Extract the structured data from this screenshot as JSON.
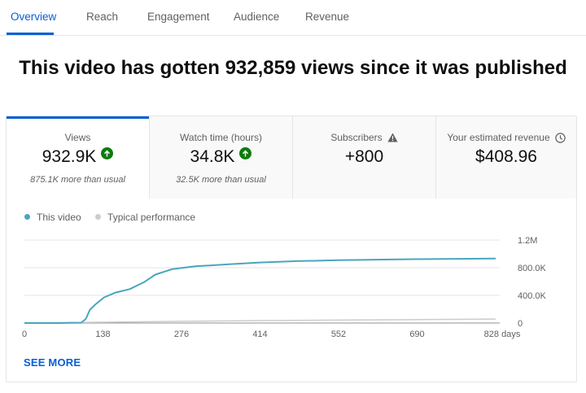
{
  "tabs": [
    {
      "label": "Overview",
      "active": true
    },
    {
      "label": "Reach"
    },
    {
      "label": "Engagement"
    },
    {
      "label": "Audience"
    },
    {
      "label": "Revenue"
    }
  ],
  "headline": "This video has gotten 932,859 views since it was published",
  "metrics": [
    {
      "label": "Views",
      "value": "932.9K",
      "sub": "875.1K more than usual",
      "icon": "arrow-up-icon"
    },
    {
      "label": "Watch time (hours)",
      "value": "34.8K",
      "sub": "32.5K more than usual",
      "icon": "arrow-up-icon"
    },
    {
      "label": "Subscribers",
      "value": "+800",
      "icon": "warning-icon"
    },
    {
      "label": "Your estimated revenue",
      "value": "$408.96",
      "icon": "clock-icon"
    }
  ],
  "colors": {
    "accent": "#065fd4",
    "positive": "#0f7b0f",
    "this_video": "#4aa5be",
    "typical": "#cccccc"
  },
  "legend": [
    {
      "label": "This video",
      "color": "#4aa5be"
    },
    {
      "label": "Typical performance",
      "color": "#cccccc"
    }
  ],
  "see_more": "SEE MORE",
  "chart_data": {
    "type": "line",
    "x_tick_labels": [
      "0",
      "138",
      "276",
      "414",
      "552",
      "690",
      "828 days"
    ],
    "y_tick_labels": [
      "0",
      "400.0K",
      "800.0K",
      "1.2M"
    ],
    "ylim": [
      0,
      1200000
    ],
    "xlim": [
      0,
      828
    ],
    "grid": true,
    "legend_position": "top-left",
    "series": [
      {
        "name": "This video",
        "color": "#4aa5be",
        "points": [
          [
            0,
            0
          ],
          [
            60,
            0
          ],
          [
            100,
            5000
          ],
          [
            108,
            60000
          ],
          [
            115,
            190000
          ],
          [
            125,
            270000
          ],
          [
            140,
            370000
          ],
          [
            160,
            440000
          ],
          [
            185,
            490000
          ],
          [
            210,
            590000
          ],
          [
            230,
            700000
          ],
          [
            260,
            780000
          ],
          [
            300,
            820000
          ],
          [
            360,
            850000
          ],
          [
            414,
            875000
          ],
          [
            480,
            895000
          ],
          [
            552,
            908000
          ],
          [
            620,
            917000
          ],
          [
            690,
            924000
          ],
          [
            760,
            928000
          ],
          [
            828,
            932859
          ]
        ]
      },
      {
        "name": "Typical performance",
        "color": "#cccccc",
        "points": [
          [
            0,
            0
          ],
          [
            100,
            8000
          ],
          [
            276,
            25000
          ],
          [
            414,
            35000
          ],
          [
            552,
            42000
          ],
          [
            690,
            50000
          ],
          [
            828,
            57800
          ]
        ]
      }
    ]
  }
}
